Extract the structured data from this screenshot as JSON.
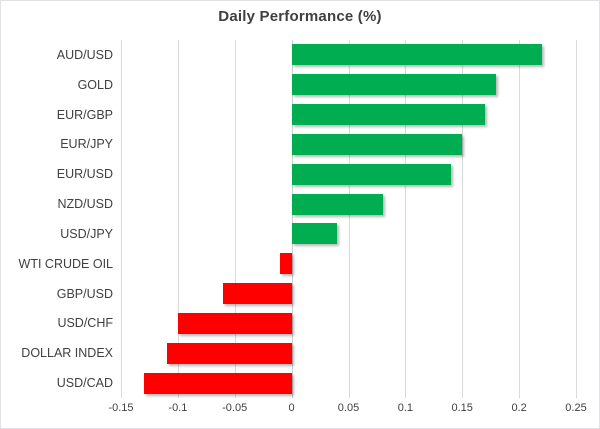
{
  "chart_data": {
    "type": "bar",
    "orientation": "horizontal",
    "title": "Daily Performance (%)",
    "categories": [
      "AUD/USD",
      "GOLD",
      "EUR/GBP",
      "EUR/JPY",
      "EUR/USD",
      "NZD/USD",
      "USD/JPY",
      "WTI CRUDE OIL",
      "GBP/USD",
      "USD/CHF",
      "DOLLAR INDEX",
      "USD/CAD"
    ],
    "values": [
      0.22,
      0.18,
      0.17,
      0.15,
      0.14,
      0.08,
      0.04,
      -0.01,
      -0.06,
      -0.1,
      -0.11,
      -0.13
    ],
    "xlim": [
      -0.15,
      0.25
    ],
    "xticks": [
      -0.15,
      -0.1,
      -0.05,
      0,
      0.05,
      0.1,
      0.15,
      0.2,
      0.25
    ],
    "xtick_labels": [
      "-0.15",
      "-0.1",
      "-0.05",
      "0",
      "0.05",
      "0.1",
      "0.15",
      "0.2",
      "0.25"
    ],
    "grid": "vertical-gridlines-on",
    "legend": "none",
    "colors": {
      "positive_bar": "#00ad50",
      "negative_bar": "#ff0000",
      "gridline": "#d9d9d9",
      "text": "#404040",
      "frame_border": "#e2e2e6",
      "background": "#ffffff"
    }
  }
}
